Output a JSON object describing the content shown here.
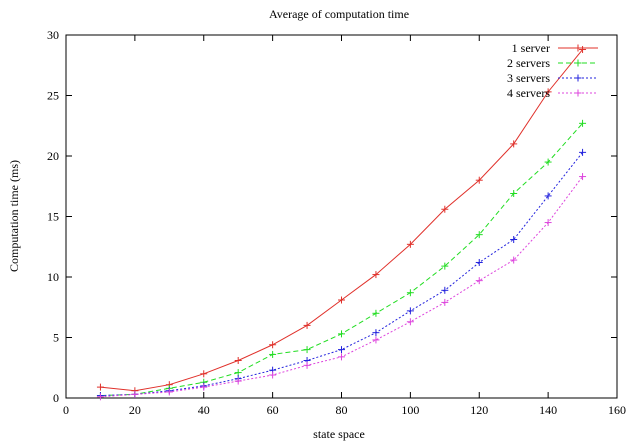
{
  "chart_data": {
    "type": "line",
    "title": "Average of computation time",
    "xlabel": "state space",
    "ylabel": "Computation time (ms)",
    "xlim": [
      0,
      160
    ],
    "ylim": [
      0,
      30
    ],
    "xticks": [
      0,
      20,
      40,
      60,
      80,
      100,
      120,
      140,
      160
    ],
    "yticks": [
      0,
      5,
      10,
      15,
      20,
      25,
      30
    ],
    "grid": false,
    "legend_position": "top-right",
    "x": [
      10,
      20,
      30,
      40,
      50,
      60,
      70,
      80,
      90,
      100,
      110,
      120,
      130,
      140,
      150
    ],
    "series": [
      {
        "name": "1 server",
        "color": "#e0302a",
        "dash": "solid",
        "values": [
          0.9,
          0.6,
          1.1,
          2.0,
          3.1,
          4.4,
          6.0,
          8.1,
          10.2,
          12.7,
          15.6,
          18.0,
          21.0,
          25.3,
          28.8
        ]
      },
      {
        "name": "2 servers",
        "color": "#22dd22",
        "dash": "dashed",
        "values": [
          0.2,
          0.3,
          0.8,
          1.3,
          2.1,
          3.6,
          4.0,
          5.3,
          7.0,
          8.7,
          10.9,
          13.5,
          16.9,
          19.5,
          22.7
        ]
      },
      {
        "name": "3 servers",
        "color": "#2222dd",
        "dash": "dotted",
        "values": [
          0.2,
          0.3,
          0.6,
          1.0,
          1.6,
          2.3,
          3.1,
          4.0,
          5.4,
          7.2,
          8.9,
          11.2,
          13.1,
          16.7,
          20.3
        ]
      },
      {
        "name": "4 servers",
        "color": "#dd44dd",
        "dash": "dotted",
        "values": [
          0.1,
          0.3,
          0.5,
          0.9,
          1.4,
          1.9,
          2.7,
          3.4,
          4.8,
          6.3,
          7.9,
          9.7,
          11.4,
          14.5,
          18.3
        ]
      }
    ]
  }
}
